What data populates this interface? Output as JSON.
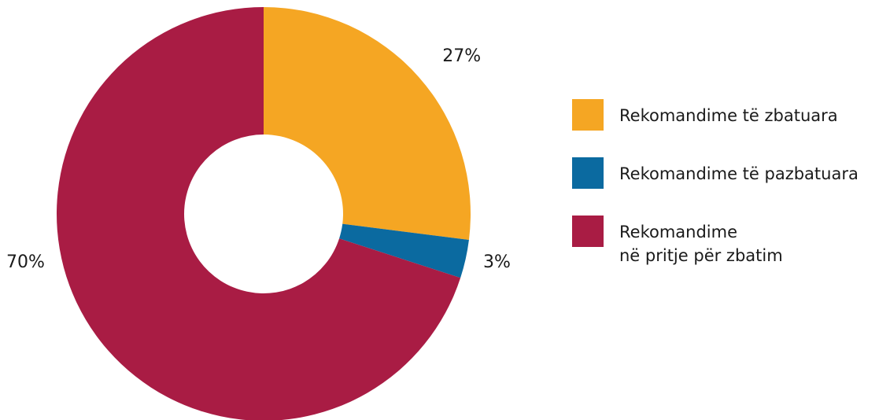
{
  "chart_data": {
    "type": "pie",
    "donut": true,
    "slices": [
      {
        "label": "Rekomandime të zbatuara",
        "label_lines": [
          "Rekomandime të zbatuara"
        ],
        "value": 27,
        "display": "27%",
        "color": "#F5A623"
      },
      {
        "label": "Rekomandime të pazbatuara",
        "label_lines": [
          "Rekomandime të pazbatuara"
        ],
        "value": 3,
        "display": "3%",
        "color": "#0B6AA0"
      },
      {
        "label": "Rekomandime në pritje për zbatim",
        "label_lines": [
          "Rekomandime",
          "në pritje për zbatim"
        ],
        "value": 70,
        "display": "70%",
        "color": "#A91C44"
      }
    ],
    "legend_position": "right"
  }
}
